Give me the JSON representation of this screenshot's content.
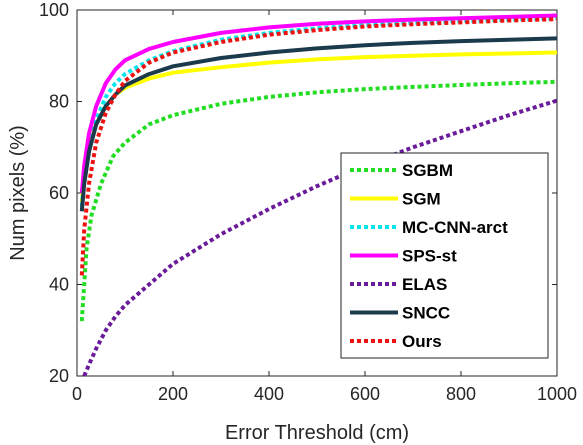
{
  "chart_data": {
    "type": "line",
    "title": "",
    "xlabel": "Error Threshold (cm)",
    "ylabel": "Num pixels (%)",
    "xlim": [
      0,
      1000
    ],
    "ylim": [
      20,
      100
    ],
    "xticks": [
      0,
      200,
      400,
      600,
      800,
      1000
    ],
    "yticks": [
      20,
      40,
      60,
      80,
      100
    ],
    "xtick_labels": [
      "0",
      "200",
      "400",
      "600",
      "800",
      "1000"
    ],
    "ytick_labels": [
      "20",
      "40",
      "60",
      "80",
      "100"
    ],
    "grid": false,
    "legend_position": "lower-right",
    "series": [
      {
        "name": "SGBM",
        "color": "#22dd22",
        "dash": "dotted",
        "points": [
          [
            10,
            32
          ],
          [
            15,
            40
          ],
          [
            20,
            48
          ],
          [
            30,
            55
          ],
          [
            50,
            62
          ],
          [
            75,
            68
          ],
          [
            100,
            71
          ],
          [
            150,
            75
          ],
          [
            200,
            77
          ],
          [
            300,
            79.5
          ],
          [
            400,
            81
          ],
          [
            500,
            82
          ],
          [
            600,
            82.7
          ],
          [
            700,
            83.2
          ],
          [
            800,
            83.6
          ],
          [
            900,
            84
          ],
          [
            1000,
            84.3
          ]
        ]
      },
      {
        "name": "SGM",
        "color": "#ffff00",
        "dash": "solid",
        "points": [
          [
            10,
            58
          ],
          [
            15,
            63
          ],
          [
            25,
            70
          ],
          [
            40,
            75
          ],
          [
            60,
            79
          ],
          [
            80,
            81.5
          ],
          [
            100,
            83
          ],
          [
            150,
            85
          ],
          [
            200,
            86.3
          ],
          [
            300,
            87.5
          ],
          [
            400,
            88.5
          ],
          [
            500,
            89.2
          ],
          [
            600,
            89.7
          ],
          [
            700,
            90
          ],
          [
            800,
            90.3
          ],
          [
            900,
            90.5
          ],
          [
            1000,
            90.7
          ]
        ]
      },
      {
        "name": "MC-CNN-arct",
        "color": "#00e5ee",
        "dash": "dotted",
        "points": [
          [
            10,
            57
          ],
          [
            15,
            63
          ],
          [
            25,
            70
          ],
          [
            40,
            76
          ],
          [
            60,
            81
          ],
          [
            80,
            84
          ],
          [
            100,
            86
          ],
          [
            150,
            89
          ],
          [
            200,
            91
          ],
          [
            300,
            93.5
          ],
          [
            400,
            95
          ],
          [
            500,
            96
          ],
          [
            600,
            96.7
          ],
          [
            700,
            97.2
          ],
          [
            800,
            97.6
          ],
          [
            900,
            97.9
          ],
          [
            1000,
            98.2
          ]
        ]
      },
      {
        "name": "SPS-st",
        "color": "#ff00ff",
        "dash": "solid",
        "points": [
          [
            10,
            60
          ],
          [
            15,
            66
          ],
          [
            25,
            73
          ],
          [
            40,
            79
          ],
          [
            60,
            84
          ],
          [
            80,
            87
          ],
          [
            100,
            89
          ],
          [
            150,
            91.5
          ],
          [
            200,
            93
          ],
          [
            300,
            95
          ],
          [
            400,
            96.2
          ],
          [
            500,
            97
          ],
          [
            600,
            97.5
          ],
          [
            700,
            97.9
          ],
          [
            800,
            98.2
          ],
          [
            900,
            98.5
          ],
          [
            1000,
            98.8
          ]
        ]
      },
      {
        "name": "ELAS",
        "color": "#6a1b9a",
        "dash": "dotted",
        "points": [
          [
            15,
            20
          ],
          [
            25,
            22.5
          ],
          [
            40,
            26
          ],
          [
            60,
            30
          ],
          [
            80,
            33
          ],
          [
            100,
            35.5
          ],
          [
            150,
            40
          ],
          [
            200,
            44.5
          ],
          [
            300,
            51
          ],
          [
            400,
            56.5
          ],
          [
            500,
            61.5
          ],
          [
            600,
            66
          ],
          [
            700,
            70
          ],
          [
            800,
            73.5
          ],
          [
            900,
            77
          ],
          [
            1000,
            80.2
          ]
        ]
      },
      {
        "name": "SNCC",
        "color": "#1b3a4b",
        "dash": "solid",
        "points": [
          [
            10,
            56
          ],
          [
            15,
            62
          ],
          [
            25,
            69
          ],
          [
            40,
            75
          ],
          [
            60,
            79
          ],
          [
            80,
            81.5
          ],
          [
            100,
            83.5
          ],
          [
            150,
            86
          ],
          [
            200,
            87.7
          ],
          [
            300,
            89.5
          ],
          [
            400,
            90.7
          ],
          [
            500,
            91.6
          ],
          [
            600,
            92.3
          ],
          [
            700,
            92.8
          ],
          [
            800,
            93.2
          ],
          [
            900,
            93.5
          ],
          [
            1000,
            93.8
          ]
        ]
      },
      {
        "name": "Ours",
        "color": "#ee1111",
        "dash": "dotted",
        "points": [
          [
            10,
            42
          ],
          [
            15,
            52
          ],
          [
            25,
            62
          ],
          [
            40,
            71
          ],
          [
            60,
            77.5
          ],
          [
            80,
            81.5
          ],
          [
            100,
            84.5
          ],
          [
            150,
            88.5
          ],
          [
            200,
            90.7
          ],
          [
            300,
            93
          ],
          [
            400,
            94.6
          ],
          [
            500,
            95.6
          ],
          [
            600,
            96.4
          ],
          [
            700,
            96.9
          ],
          [
            800,
            97.3
          ],
          [
            900,
            97.7
          ],
          [
            1000,
            98
          ]
        ]
      }
    ]
  }
}
